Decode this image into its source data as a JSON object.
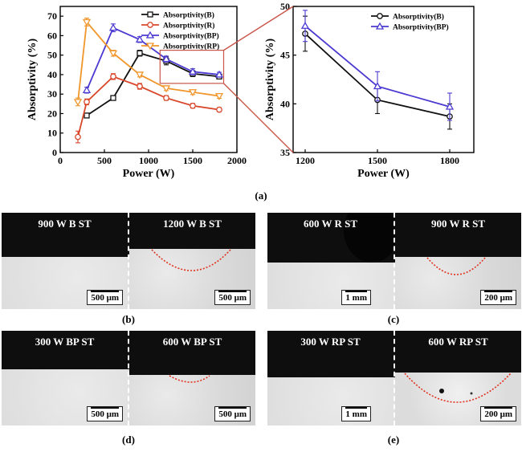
{
  "chart_data": [
    {
      "type": "line",
      "xlabel": "Power (W)",
      "ylabel": "Absorptivity (%)",
      "xlim": [
        0,
        2000
      ],
      "ylim": [
        0,
        75
      ],
      "xticks": [
        "0",
        "500",
        "1000",
        "1500",
        "2000"
      ],
      "yticks": [
        "0",
        "10",
        "20",
        "30",
        "40",
        "50",
        "60",
        "70"
      ],
      "legend_position": "top-right",
      "series": [
        {
          "name": "Absorptivity(B)",
          "color": "#111111",
          "x": [
            300,
            600,
            900,
            1200,
            1500,
            1800
          ],
          "values": [
            19,
            28,
            51,
            47,
            40.5,
            39
          ],
          "err": [
            1.2,
            1,
            1.5,
            2,
            1.5,
            1.2
          ]
        },
        {
          "name": "Absorptivity(R)",
          "color": "#d9472b",
          "x": [
            200,
            300,
            600,
            900,
            1200,
            1500,
            1800
          ],
          "values": [
            8,
            26,
            39,
            34,
            28,
            24,
            22
          ],
          "err": [
            3,
            1.5,
            1.5,
            1.5,
            1.2,
            1.2,
            1
          ]
        },
        {
          "name": "Absorptivity(BP)",
          "color": "#4b3ad1",
          "x": [
            300,
            600,
            900,
            1200,
            1500,
            1800
          ],
          "values": [
            32,
            64,
            58,
            48,
            41.5,
            40
          ],
          "err": [
            1.5,
            2,
            1.5,
            1.5,
            1.5,
            1.2
          ]
        },
        {
          "name": "Absorptivity(RP)",
          "color": "#f0962b",
          "x": [
            200,
            300,
            600,
            900,
            1200,
            1500,
            1800
          ],
          "values": [
            26,
            67,
            51,
            40,
            33,
            31,
            29
          ],
          "err": [
            2,
            2,
            1.5,
            1.2,
            1.2,
            1.2,
            1.2
          ]
        }
      ]
    },
    {
      "type": "line",
      "xlabel": "Power (W)",
      "ylabel": "Absorptivity (%)",
      "xlim": [
        1150,
        1900
      ],
      "ylim": [
        35,
        50
      ],
      "xticks": [
        "1200",
        "1500",
        "1800"
      ],
      "yticks": [
        "35",
        "40",
        "45",
        "50"
      ],
      "legend_position": "top-right",
      "series": [
        {
          "name": "Absorptivity(B)",
          "color": "#111111",
          "x": [
            1200,
            1500,
            1800
          ],
          "values": [
            47.2,
            40.4,
            38.7
          ],
          "err": [
            1.8,
            1.4,
            1.3
          ]
        },
        {
          "name": "Absorptivity(BP)",
          "color": "#4b3ad1",
          "x": [
            1200,
            1500,
            1800
          ],
          "values": [
            48.0,
            41.8,
            39.7
          ],
          "err": [
            1.6,
            1.5,
            1.4
          ]
        }
      ]
    }
  ],
  "labels": {
    "a": "(a)",
    "b": "(b)",
    "c": "(c)",
    "d": "(d)",
    "e": "(e)"
  },
  "micrographs": {
    "b": {
      "left": "900 W B ST",
      "right": "1200 W B ST",
      "scale_left": "500 μm",
      "scale_right": "500 μm"
    },
    "c": {
      "left": "600 W R ST",
      "right": "900 W R ST",
      "scale_left": "1 mm",
      "scale_right": "200 μm"
    },
    "d": {
      "left": "300 W BP ST",
      "right": "600 W BP ST",
      "scale_left": "500 μm",
      "scale_right": "500 μm"
    },
    "e": {
      "left": "300 W RP ST",
      "right": "600 W RP ST",
      "scale_left": "1 mm",
      "scale_right": "200 μm"
    }
  },
  "colors": {
    "melt_pool_outline": "#e0331f",
    "zoom_box": "#c9564a"
  }
}
